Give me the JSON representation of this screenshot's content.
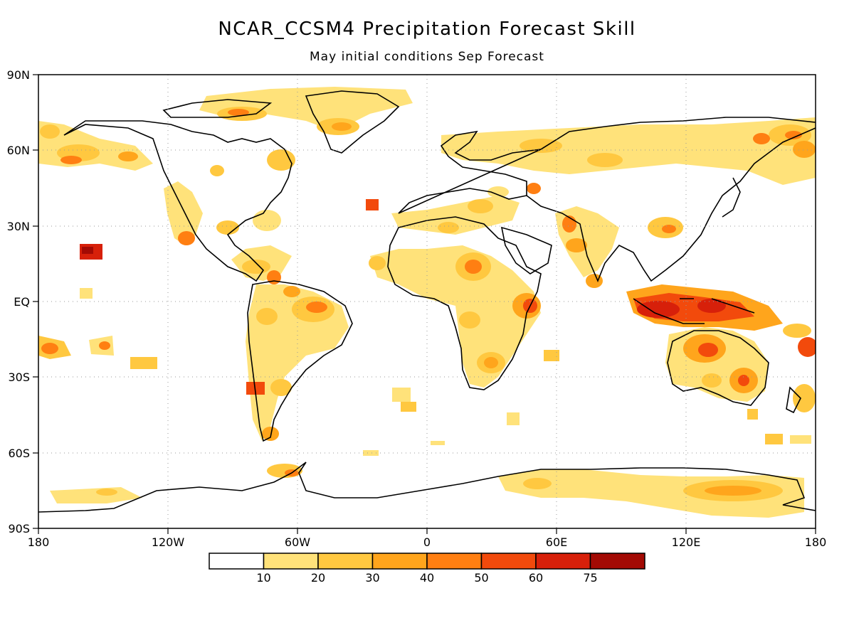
{
  "title": "NCAR_CCSM4 Precipitation Forecast Skill",
  "subtitle": "May initial conditions  Sep Forecast",
  "axes": {
    "lat_labels": [
      "90N",
      "60N",
      "30N",
      "EQ",
      "30S",
      "60S",
      "90S"
    ],
    "lon_labels": [
      "180",
      "120W",
      "60W",
      "0",
      "60E",
      "120E",
      "180"
    ]
  },
  "colorbar": {
    "labels": [
      "10",
      "20",
      "30",
      "40",
      "50",
      "60",
      "75"
    ],
    "colors": [
      "#ffffff",
      "#ffe27a",
      "#ffc840",
      "#ffa51c",
      "#ff7f12",
      "#f24a0c",
      "#d7200a",
      "#a30a04"
    ]
  },
  "colors": {
    "land_outline": "#000000",
    "grid": "#9a9a9a"
  }
}
